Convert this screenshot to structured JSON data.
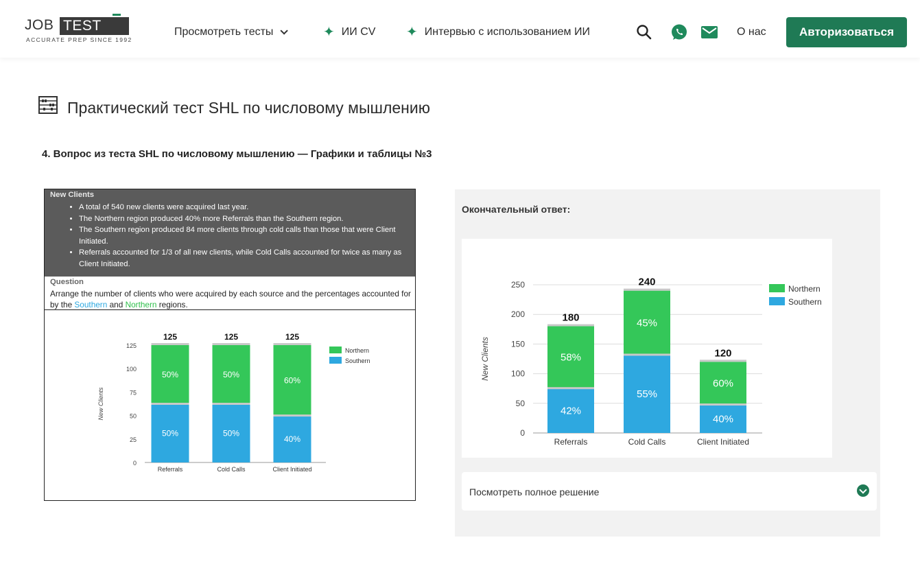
{
  "logo": {
    "word1": "JOB",
    "word2": "TEST PREP",
    "tagline": "ACCURATE PREP SINCE 1992"
  },
  "nav": {
    "view_tests": "Просмотреть тесты",
    "ai_cv": "ИИ CV",
    "ai_interview": "Интервью с использованием ИИ",
    "about": "О нас",
    "login": "Авторизоваться"
  },
  "icons": {
    "sparkle": "sparkle-icon",
    "search": "search-icon",
    "whatsapp": "whatsapp-icon",
    "mail": "mail-icon",
    "abacus": "abacus-icon"
  },
  "colors": {
    "brand_green": "#1f7a55",
    "northern": "#34c759",
    "southern": "#2ea8e0"
  },
  "page": {
    "title": "Практический тест SHL по числовому мышлению",
    "question_heading": "4. Вопрос из теста SHL по числовому мышлению — Графики и таблицы №3"
  },
  "question_panel": {
    "header": "New Clients",
    "bullets": [
      "A total of 540 new clients were acquired last year.",
      "The Northern region produced 40% more Referrals than the Southern region.",
      "The Southern region produced 84 more clients through cold calls than those that were Client Initiated.",
      "Referrals accounted for 1/3 of all new clients, while Cold Calls accounted for twice as many as Client Initiated."
    ],
    "question_label": "Question",
    "question_text_1": "Arrange the number of clients who were acquired by each source and the percentages accounted for by the ",
    "question_southern": "Southern",
    "question_and": " and ",
    "question_northern": "Northern",
    "question_text_2": " regions."
  },
  "answer": {
    "label": "Окончательный ответ:",
    "solution": "Посмотреть полное решение"
  },
  "chart_data": [
    {
      "type": "bar",
      "stacked": true,
      "categories": [
        "Referrals",
        "Cold Calls",
        "Client Initiated"
      ],
      "series": [
        {
          "name": "Southern",
          "values": [
            62.5,
            62.5,
            50
          ],
          "labels": [
            "50%",
            "50%",
            "40%"
          ]
        },
        {
          "name": "Northern",
          "values": [
            62.5,
            62.5,
            75
          ],
          "labels": [
            "50%",
            "50%",
            "60%"
          ]
        }
      ],
      "totals": [
        "125",
        "125",
        "125"
      ],
      "ylabel": "New Clients",
      "ylim": [
        0,
        125
      ],
      "yticks": [
        0,
        25,
        50,
        75,
        100,
        125
      ],
      "legend": "top-right",
      "grid": false
    },
    {
      "type": "bar",
      "stacked": true,
      "categories": [
        "Referrals",
        "Cold Calls",
        "Client Initiated"
      ],
      "series": [
        {
          "name": "Southern",
          "values": [
            75.6,
            132,
            48
          ],
          "labels": [
            "42%",
            "55%",
            "40%"
          ]
        },
        {
          "name": "Northern",
          "values": [
            104.4,
            108,
            72
          ],
          "labels": [
            "58%",
            "45%",
            "60%"
          ]
        }
      ],
      "totals": [
        "180",
        "240",
        "120"
      ],
      "ylabel": "New Clients",
      "ylim": [
        0,
        250
      ],
      "yticks": [
        0,
        50,
        100,
        150,
        200,
        250
      ],
      "legend": "top-right",
      "grid": true
    }
  ]
}
